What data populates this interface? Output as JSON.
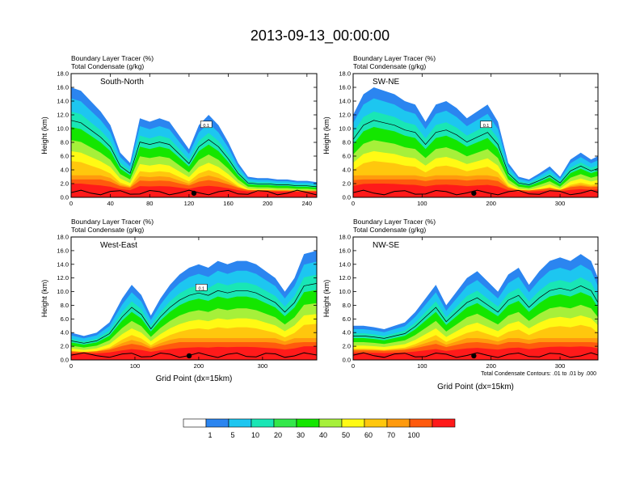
{
  "figure": {
    "title": "2013-09-13_00:00:00",
    "footnote": "Total Condensate Contours: .01 to .01 by .000"
  },
  "colorbar": {
    "colors": [
      "#ffffff",
      "#2b85f0",
      "#1dc6f0",
      "#19e6b5",
      "#33e84a",
      "#14e600",
      "#a6f03a",
      "#fffa14",
      "#ffc70d",
      "#ff9a0d",
      "#ff5a0d",
      "#ff1a1a"
    ],
    "labels": [
      "1",
      "5",
      "10",
      "20",
      "30",
      "40",
      "50",
      "60",
      "70",
      "100"
    ]
  },
  "chart_data": [
    {
      "type": "heatmap",
      "title_line1": "Boundary Layer Tracer   (%)",
      "title_line2": "Total Condensate   (g/kg)",
      "inset_label": "South-North",
      "ylabel": "Height (km)",
      "xlabel": "",
      "xlim": [
        0,
        250
      ],
      "ylim": [
        0,
        18
      ],
      "xticks": [
        "0",
        "40",
        "80",
        "120",
        "160",
        "200",
        "240"
      ],
      "xtick_values": [
        0,
        40,
        80,
        120,
        160,
        200,
        240
      ],
      "yticks": [
        "0.0",
        "2.0",
        "4.0",
        "6.0",
        "8.0",
        "10.0",
        "12.0",
        "14.0",
        "16.0",
        "18.0"
      ],
      "contour_label": "0.1",
      "marker_x": 125,
      "bands": [
        {
          "x": 0,
          "top": 16.0
        },
        {
          "x": 10,
          "top": 15.5
        },
        {
          "x": 20,
          "top": 14.0
        },
        {
          "x": 30,
          "top": 12.5
        },
        {
          "x": 40,
          "top": 10.5
        },
        {
          "x": 50,
          "top": 6.5
        },
        {
          "x": 60,
          "top": 5.0
        },
        {
          "x": 70,
          "top": 11.5
        },
        {
          "x": 80,
          "top": 11.0
        },
        {
          "x": 90,
          "top": 11.5
        },
        {
          "x": 100,
          "top": 11.0
        },
        {
          "x": 110,
          "top": 9.0
        },
        {
          "x": 120,
          "top": 7.0
        },
        {
          "x": 130,
          "top": 10.5
        },
        {
          "x": 140,
          "top": 12.0
        },
        {
          "x": 150,
          "top": 10.5
        },
        {
          "x": 160,
          "top": 8.0
        },
        {
          "x": 170,
          "top": 5.0
        },
        {
          "x": 180,
          "top": 3.0
        },
        {
          "x": 190,
          "top": 2.8
        },
        {
          "x": 200,
          "top": 2.8
        },
        {
          "x": 210,
          "top": 2.6
        },
        {
          "x": 220,
          "top": 2.6
        },
        {
          "x": 230,
          "top": 2.4
        },
        {
          "x": 240,
          "top": 2.4
        },
        {
          "x": 250,
          "top": 2.2
        }
      ]
    },
    {
      "type": "heatmap",
      "title_line1": "Boundary Layer Tracer   (%)",
      "title_line2": "Total Condensate   (g/kg)",
      "inset_label": "SW-NE",
      "ylabel": "Height (km)",
      "xlabel": "",
      "xlim": [
        0,
        355
      ],
      "ylim": [
        0,
        18
      ],
      "xticks": [
        "0",
        "100",
        "200",
        "300"
      ],
      "xtick_values": [
        0,
        100,
        200,
        300
      ],
      "yticks": [
        "0.0",
        "2.0",
        "4.0",
        "6.0",
        "8.0",
        "10.0",
        "12.0",
        "14.0",
        "16.0",
        "18.0"
      ],
      "contour_label": "0.1",
      "marker_x": 175,
      "bands": [
        {
          "x": 0,
          "top": 12.0
        },
        {
          "x": 15,
          "top": 15.0
        },
        {
          "x": 30,
          "top": 16.0
        },
        {
          "x": 45,
          "top": 15.5
        },
        {
          "x": 60,
          "top": 15.0
        },
        {
          "x": 75,
          "top": 14.0
        },
        {
          "x": 90,
          "top": 13.5
        },
        {
          "x": 105,
          "top": 11.0
        },
        {
          "x": 120,
          "top": 13.5
        },
        {
          "x": 135,
          "top": 14.0
        },
        {
          "x": 150,
          "top": 13.0
        },
        {
          "x": 165,
          "top": 11.5
        },
        {
          "x": 180,
          "top": 12.5
        },
        {
          "x": 195,
          "top": 13.5
        },
        {
          "x": 210,
          "top": 11.0
        },
        {
          "x": 225,
          "top": 5.0
        },
        {
          "x": 240,
          "top": 3.0
        },
        {
          "x": 255,
          "top": 2.6
        },
        {
          "x": 270,
          "top": 3.5
        },
        {
          "x": 285,
          "top": 4.5
        },
        {
          "x": 300,
          "top": 3.0
        },
        {
          "x": 315,
          "top": 5.5
        },
        {
          "x": 330,
          "top": 6.5
        },
        {
          "x": 345,
          "top": 5.5
        },
        {
          "x": 355,
          "top": 6.0
        }
      ]
    },
    {
      "type": "heatmap",
      "title_line1": "Boundary Layer Tracer   (%)",
      "title_line2": "Total Condensate   (g/kg)",
      "inset_label": "West-East",
      "ylabel": "Height (km)",
      "xlabel": "Grid Point (dx=15km)",
      "xlim": [
        0,
        385
      ],
      "ylim": [
        0,
        18
      ],
      "xticks": [
        "0",
        "100",
        "200",
        "300"
      ],
      "xtick_values": [
        0,
        100,
        200,
        300
      ],
      "yticks": [
        "0.0",
        "2.0",
        "4.0",
        "6.0",
        "8.0",
        "10.0",
        "12.0",
        "14.0",
        "16.0",
        "18.0"
      ],
      "contour_label": "0.1",
      "marker_x": 185,
      "bands": [
        {
          "x": 0,
          "top": 4.0
        },
        {
          "x": 20,
          "top": 3.5
        },
        {
          "x": 40,
          "top": 4.0
        },
        {
          "x": 60,
          "top": 5.5
        },
        {
          "x": 80,
          "top": 9.0
        },
        {
          "x": 95,
          "top": 11.0
        },
        {
          "x": 110,
          "top": 9.5
        },
        {
          "x": 125,
          "top": 6.5
        },
        {
          "x": 140,
          "top": 9.0
        },
        {
          "x": 155,
          "top": 11.0
        },
        {
          "x": 170,
          "top": 12.5
        },
        {
          "x": 185,
          "top": 13.5
        },
        {
          "x": 200,
          "top": 14.0
        },
        {
          "x": 215,
          "top": 13.5
        },
        {
          "x": 230,
          "top": 14.5
        },
        {
          "x": 245,
          "top": 14.0
        },
        {
          "x": 260,
          "top": 14.5
        },
        {
          "x": 275,
          "top": 14.5
        },
        {
          "x": 290,
          "top": 14.0
        },
        {
          "x": 305,
          "top": 13.0
        },
        {
          "x": 320,
          "top": 12.0
        },
        {
          "x": 335,
          "top": 10.0
        },
        {
          "x": 350,
          "top": 12.0
        },
        {
          "x": 365,
          "top": 15.5
        },
        {
          "x": 385,
          "top": 16.0
        }
      ]
    },
    {
      "type": "heatmap",
      "title_line1": "Boundary Layer Tracer   (%)",
      "title_line2": "Total Condensate   (g/kg)",
      "inset_label": "NW-SE",
      "ylabel": "Height (km)",
      "xlabel": "Grid Point (dx=15km)",
      "xlim": [
        0,
        355
      ],
      "ylim": [
        0,
        18
      ],
      "xticks": [
        "0",
        "100",
        "200",
        "300"
      ],
      "xtick_values": [
        0,
        100,
        200,
        300
      ],
      "yticks": [
        "0.0",
        "2.0",
        "4.0",
        "6.0",
        "8.0",
        "10.0",
        "12.0",
        "14.0",
        "16.0",
        "18.0"
      ],
      "contour_label": "",
      "marker_x": 175,
      "bands": [
        {
          "x": 0,
          "top": 5.0
        },
        {
          "x": 15,
          "top": 5.0
        },
        {
          "x": 30,
          "top": 4.8
        },
        {
          "x": 45,
          "top": 4.5
        },
        {
          "x": 60,
          "top": 5.0
        },
        {
          "x": 75,
          "top": 5.5
        },
        {
          "x": 90,
          "top": 7.0
        },
        {
          "x": 105,
          "top": 9.0
        },
        {
          "x": 120,
          "top": 11.0
        },
        {
          "x": 135,
          "top": 8.0
        },
        {
          "x": 150,
          "top": 10.0
        },
        {
          "x": 165,
          "top": 12.0
        },
        {
          "x": 180,
          "top": 13.0
        },
        {
          "x": 195,
          "top": 11.5
        },
        {
          "x": 210,
          "top": 10.0
        },
        {
          "x": 225,
          "top": 12.5
        },
        {
          "x": 240,
          "top": 13.5
        },
        {
          "x": 255,
          "top": 11.0
        },
        {
          "x": 270,
          "top": 13.0
        },
        {
          "x": 285,
          "top": 14.5
        },
        {
          "x": 300,
          "top": 15.0
        },
        {
          "x": 315,
          "top": 14.5
        },
        {
          "x": 330,
          "top": 15.5
        },
        {
          "x": 345,
          "top": 14.5
        },
        {
          "x": 355,
          "top": 12.0
        }
      ]
    }
  ]
}
